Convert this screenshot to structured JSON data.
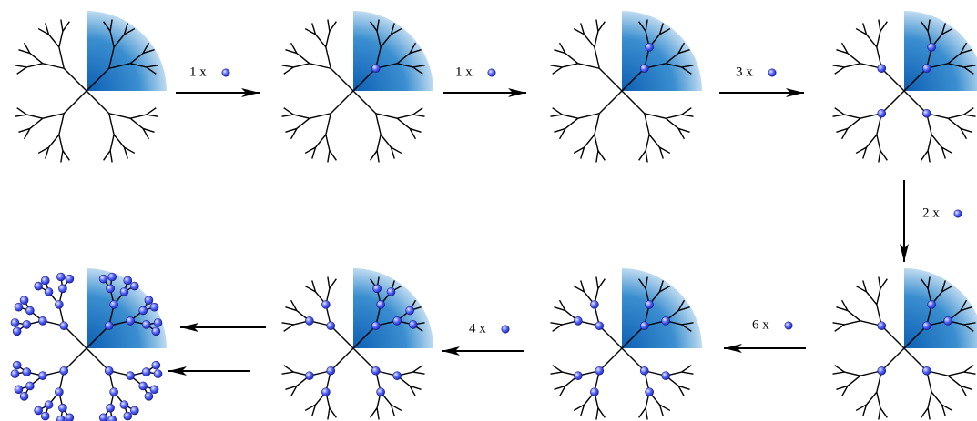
{
  "steps": [
    {
      "label": "1 x"
    },
    {
      "label": "1 x"
    },
    {
      "label": "3 x"
    },
    {
      "label": "2 x"
    },
    {
      "label": "6 x"
    },
    {
      "label": "4 x"
    }
  ]
}
